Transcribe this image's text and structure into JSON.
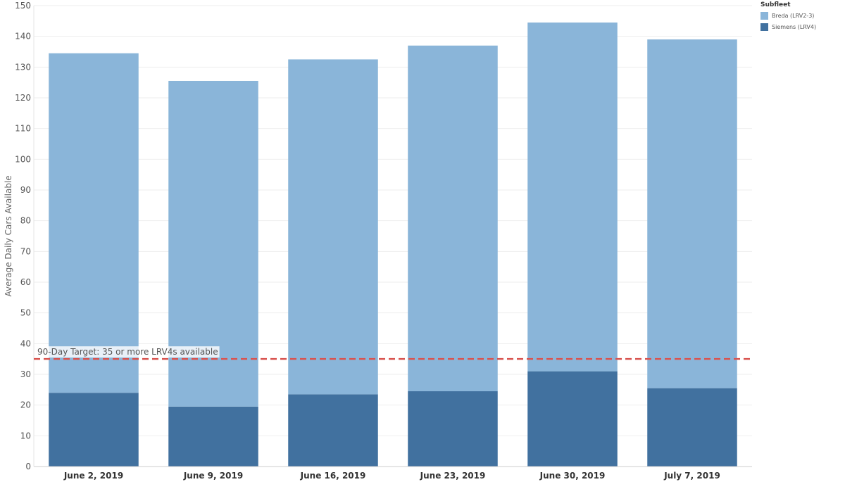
{
  "chart_data": {
    "type": "bar",
    "stacked": true,
    "categories": [
      "June 2, 2019",
      "June 9, 2019",
      "June 16, 2019",
      "June 23, 2019",
      "June 30, 2019",
      "July 7, 2019"
    ],
    "series": [
      {
        "name": "Siemens (LRV4)",
        "color": "#41719f",
        "values": [
          24,
          19.5,
          23.5,
          24.5,
          31,
          25.5
        ]
      },
      {
        "name": "Breda (LRV2-3)",
        "color": "#8ab5d9",
        "values": [
          110.5,
          106,
          109,
          112.5,
          113.5,
          113.5
        ]
      }
    ],
    "xlabel": "",
    "ylabel": "Average Daily Cars Available",
    "ylim": [
      0,
      150
    ],
    "yticks": [
      0,
      10,
      20,
      30,
      40,
      50,
      60,
      70,
      80,
      90,
      100,
      110,
      120,
      130,
      140,
      150
    ],
    "grid": true,
    "reference_line": {
      "value": 35,
      "label": "90-Day Target: 35 or more LRV4s available",
      "color": "#d9534f"
    },
    "legend": {
      "title": "Subfleet",
      "position": "top-right"
    }
  }
}
